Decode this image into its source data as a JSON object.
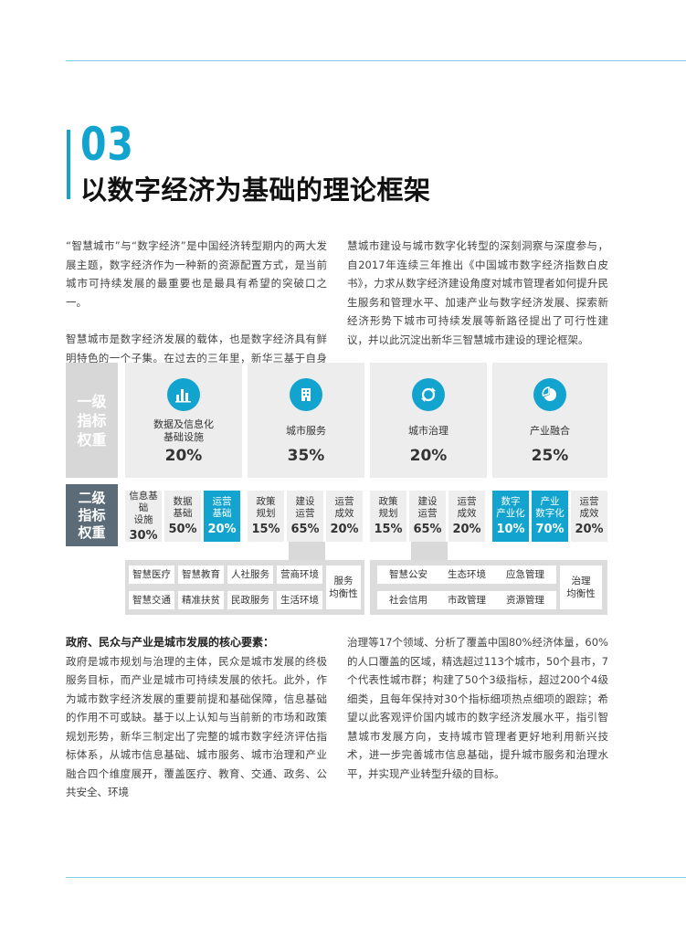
{
  "chapter": {
    "number": "03",
    "title": "以数字经济为基础的理论框架"
  },
  "intro": {
    "left_paragraphs": [
      "“智慧城市”与“数字经济”是中国经济转型期内的两大发展主题，数字经济作为一种新的资源配置方式，是当前城市可持续发展的最重要也是最具有希望的突破口之一。",
      "智慧城市是数字经济发展的载体，也是数字经济具有鲜明特色的一个子集。在过去的三年里，新华三基于自身对智"
    ],
    "right_paragraph": "慧城市建设与城市数字化转型的深刻洞察与深度参与，自2017年连续三年推出《中国城市数字经济指数白皮书》，力求从数字经济建设角度对城市管理者如何提升民生服务和管理水平、加速产业与数字经济发展、探索新经济形势下城市可持续发展等新路径提出了可行性建议，并以此沉淀出新华三智慧城市建设的理论框架。"
  },
  "framework": {
    "level1_label": [
      "一级",
      "指标",
      "权重"
    ],
    "level2_label": [
      "二级",
      "指标",
      "权重"
    ],
    "categories": [
      {
        "icon": "bar-chart-icon",
        "name": "数据及信息化\n基础设施",
        "pct": "20%"
      },
      {
        "icon": "building-icon",
        "name": "城市服务",
        "pct": "35%"
      },
      {
        "icon": "refresh-icon",
        "name": "城市治理",
        "pct": "20%"
      },
      {
        "icon": "pie-chart-icon",
        "name": "产业融合",
        "pct": "25%"
      }
    ],
    "subs": [
      [
        {
          "label": "信息基础\n设施",
          "pct": "30%",
          "hl": false
        },
        {
          "label": "数据\n基础",
          "pct": "50%",
          "hl": false
        },
        {
          "label": "运营\n基础",
          "pct": "20%",
          "hl": true
        }
      ],
      [
        {
          "label": "政策\n规划",
          "pct": "15%",
          "hl": false
        },
        {
          "label": "建设\n运营",
          "pct": "65%",
          "hl": false
        },
        {
          "label": "运营\n成效",
          "pct": "20%",
          "hl": false
        }
      ],
      [
        {
          "label": "政策\n规划",
          "pct": "15%",
          "hl": false
        },
        {
          "label": "建设\n运营",
          "pct": "65%",
          "hl": false
        },
        {
          "label": "运营\n成效",
          "pct": "20%",
          "hl": false
        }
      ],
      [
        {
          "label": "数字\n产业化",
          "pct": "10%",
          "hl": true
        },
        {
          "label": "产业\n数字化",
          "pct": "70%",
          "hl": true
        },
        {
          "label": "运营\n成效",
          "pct": "20%",
          "hl": false
        }
      ]
    ],
    "service_tags": [
      "智慧医疗",
      "智慧教育",
      "人社服务",
      "营商环境",
      "智慧交通",
      "精准扶贫",
      "民政服务",
      "生活环境",
      "服务\n均衡性"
    ],
    "governance_tags": [
      "智慧公安",
      "生态环境",
      "应急管理",
      "社会信用",
      "市政管理",
      "资源管理",
      "治理\n均衡性"
    ],
    "icon_color": "#12a4cf"
  },
  "body": {
    "heading": "政府、民众与产业是城市发展的核心要素：",
    "left_text": "政府是城市规划与治理的主体，民众是城市发展的终极服务目标，而产业是城市可持续发展的依托。此外，作为城市数字经济发展的重要前提和基础保障，信息基础的作用不可或缺。基于以上认知与当前新的市场和政策规划形势，新华三制定出了完整的城市数字经济评估指标体系，从城市信息基础、城市服务、城市治理和产业融合四个维度展开，覆盖医疗、教育、交通、政务、公共安全、环境",
    "right_text": "治理等17个领域、分析了覆盖中国80%经济体量，60%的人口覆盖的区域，精选超过113个城市，50个县市，7个代表性城市群；构建了50个3级指标，超过200个4级细类，且每年保持对30个指标细项热点细项的跟踪；希望以此客观评价国内城市的数字经济发展水平，指引智慧城市发展方向，支持城市管理者更好地利用新兴技术，进一步完善城市信息基础，提升城市服务和治理水平，并实现产业转型升级的目标。"
  }
}
